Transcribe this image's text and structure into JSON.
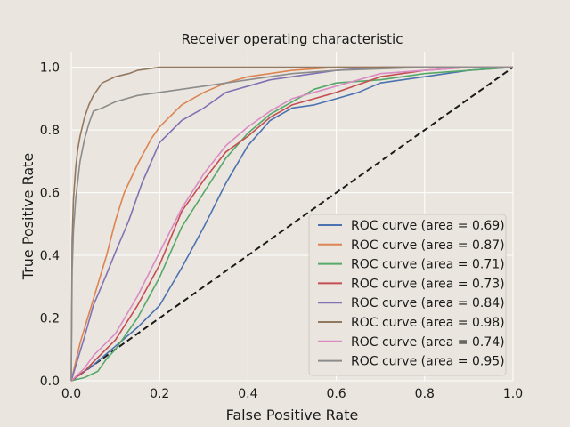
{
  "chart_data": {
    "type": "line",
    "title": "Receiver operating characteristic",
    "xlabel": "False Positive Rate",
    "ylabel": "True Positive Rate",
    "xlim": [
      0.0,
      1.0
    ],
    "ylim": [
      0.0,
      1.05
    ],
    "xticks": [
      "0.0",
      "0.2",
      "0.4",
      "0.6",
      "0.8",
      "1.0"
    ],
    "yticks": [
      "0.0",
      "0.2",
      "0.4",
      "0.6",
      "0.8",
      "1.0"
    ],
    "grid": true,
    "legend_position": "lower-right",
    "background": "#eae6df",
    "reference_line": {
      "x": [
        0,
        1
      ],
      "y": [
        0,
        1
      ],
      "color": "#1a1a1a",
      "style": "dashed"
    },
    "series": [
      {
        "name": "ROC curve (area = 0.69)",
        "color": "#4c72b0",
        "x": [
          0,
          0.05,
          0.1,
          0.15,
          0.2,
          0.25,
          0.3,
          0.35,
          0.4,
          0.45,
          0.5,
          0.55,
          0.6,
          0.65,
          0.7,
          0.8,
          0.9,
          1.0
        ],
        "y": [
          0,
          0.05,
          0.11,
          0.17,
          0.24,
          0.36,
          0.49,
          0.63,
          0.75,
          0.83,
          0.87,
          0.88,
          0.9,
          0.92,
          0.95,
          0.97,
          0.99,
          1.0
        ]
      },
      {
        "name": "ROC curve (area = 0.87)",
        "color": "#dd8452",
        "x": [
          0,
          0.02,
          0.05,
          0.08,
          0.1,
          0.12,
          0.15,
          0.18,
          0.2,
          0.25,
          0.3,
          0.35,
          0.4,
          0.5,
          0.6,
          0.7,
          0.8,
          1.0
        ],
        "y": [
          0,
          0.12,
          0.26,
          0.4,
          0.51,
          0.6,
          0.69,
          0.77,
          0.81,
          0.88,
          0.92,
          0.95,
          0.97,
          0.99,
          1.0,
          1.0,
          1.0,
          1.0
        ]
      },
      {
        "name": "ROC curve (area = 0.71)",
        "color": "#55a868",
        "x": [
          0,
          0.03,
          0.06,
          0.08,
          0.1,
          0.15,
          0.2,
          0.25,
          0.3,
          0.35,
          0.4,
          0.45,
          0.5,
          0.55,
          0.6,
          0.7,
          0.8,
          0.9,
          1.0
        ],
        "y": [
          0,
          0.01,
          0.03,
          0.07,
          0.1,
          0.2,
          0.33,
          0.49,
          0.6,
          0.71,
          0.79,
          0.85,
          0.89,
          0.93,
          0.95,
          0.96,
          0.98,
          0.99,
          1.0
        ]
      },
      {
        "name": "ROC curve (area = 0.73)",
        "color": "#c44e52",
        "x": [
          0,
          0.03,
          0.05,
          0.1,
          0.15,
          0.2,
          0.25,
          0.3,
          0.35,
          0.4,
          0.45,
          0.5,
          0.55,
          0.6,
          0.7,
          0.8,
          0.9,
          1.0
        ],
        "y": [
          0,
          0.03,
          0.06,
          0.13,
          0.24,
          0.37,
          0.54,
          0.64,
          0.73,
          0.78,
          0.84,
          0.88,
          0.9,
          0.92,
          0.97,
          0.99,
          1.0,
          1.0
        ]
      },
      {
        "name": "ROC curve (area = 0.84)",
        "color": "#8172b3",
        "x": [
          0,
          0.03,
          0.05,
          0.08,
          0.1,
          0.13,
          0.16,
          0.2,
          0.25,
          0.3,
          0.35,
          0.4,
          0.45,
          0.5,
          0.6,
          0.7,
          0.8,
          0.9,
          1.0
        ],
        "y": [
          0,
          0.14,
          0.24,
          0.34,
          0.41,
          0.51,
          0.63,
          0.76,
          0.83,
          0.87,
          0.92,
          0.94,
          0.96,
          0.97,
          0.99,
          1.0,
          1.0,
          1.0,
          1.0
        ]
      },
      {
        "name": "ROC curve (area = 0.98)",
        "color": "#937860",
        "x": [
          0,
          0.002,
          0.005,
          0.01,
          0.015,
          0.02,
          0.03,
          0.04,
          0.05,
          0.07,
          0.1,
          0.13,
          0.15,
          0.2,
          0.3,
          0.5,
          1.0
        ],
        "y": [
          0,
          0.45,
          0.58,
          0.68,
          0.74,
          0.78,
          0.84,
          0.88,
          0.91,
          0.95,
          0.97,
          0.98,
          0.99,
          1.0,
          1.0,
          1.0,
          1.0
        ]
      },
      {
        "name": "ROC curve (area = 0.74)",
        "color": "#da8bc3",
        "x": [
          0,
          0.03,
          0.05,
          0.1,
          0.15,
          0.2,
          0.25,
          0.3,
          0.35,
          0.4,
          0.45,
          0.5,
          0.55,
          0.6,
          0.7,
          0.8,
          0.9,
          1.0
        ],
        "y": [
          0,
          0.04,
          0.08,
          0.15,
          0.27,
          0.41,
          0.55,
          0.66,
          0.75,
          0.81,
          0.86,
          0.9,
          0.92,
          0.94,
          0.98,
          0.99,
          1.0,
          1.0
        ]
      },
      {
        "name": "ROC curve (area = 0.95)",
        "color": "#8c8c8c",
        "x": [
          0,
          0.002,
          0.005,
          0.01,
          0.02,
          0.03,
          0.04,
          0.05,
          0.07,
          0.1,
          0.15,
          0.2,
          0.25,
          0.3,
          0.4,
          0.5,
          0.6,
          0.8,
          1.0
        ],
        "y": [
          0,
          0.35,
          0.48,
          0.58,
          0.7,
          0.77,
          0.82,
          0.86,
          0.87,
          0.89,
          0.91,
          0.92,
          0.93,
          0.94,
          0.96,
          0.98,
          0.99,
          1.0,
          1.0
        ]
      }
    ]
  }
}
